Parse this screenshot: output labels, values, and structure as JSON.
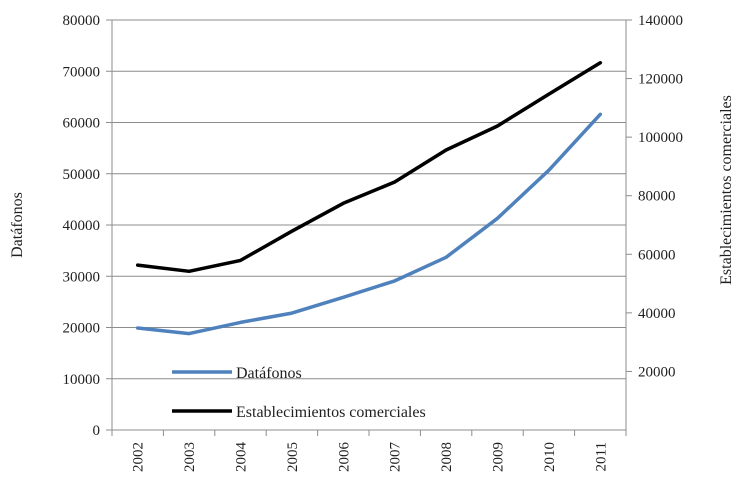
{
  "chart_data": {
    "type": "line",
    "categories": [
      "2002",
      "2003",
      "2004",
      "2005",
      "2006",
      "2007",
      "2008",
      "2009",
      "2010",
      "2011"
    ],
    "series": [
      {
        "name": "Datáfonos",
        "axis": "left",
        "color": "#4f81bd",
        "values": [
          19900,
          18800,
          21000,
          22800,
          25900,
          29100,
          33700,
          41300,
          50700,
          61600
        ]
      },
      {
        "name": "Establecimientos comerciales",
        "axis": "right",
        "color": "#000000",
        "values": [
          56300,
          54200,
          57900,
          67900,
          77400,
          84700,
          95600,
          103800,
          114700,
          125400
        ]
      }
    ],
    "ylabel": "Datáfonos",
    "y2label": "Establecimientos comerciales",
    "ylim": [
      0,
      80000
    ],
    "y2lim": [
      0,
      140000
    ],
    "yticks": [
      "0",
      "10000",
      "20000",
      "30000",
      "40000",
      "50000",
      "60000",
      "70000",
      "80000"
    ],
    "y2ticks": [
      "20000",
      "40000",
      "60000",
      "80000",
      "100000",
      "120000",
      "140000"
    ],
    "grid": true,
    "legend_position": "inside-bottom-left"
  }
}
